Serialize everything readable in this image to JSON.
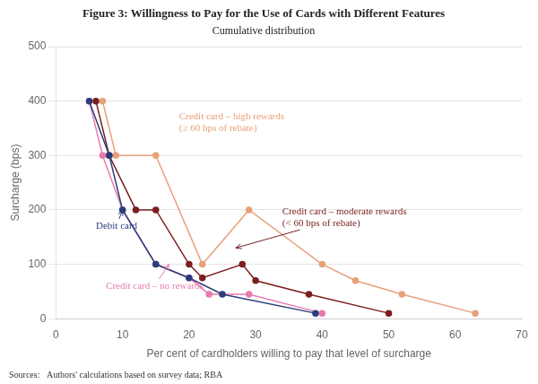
{
  "chart_data": {
    "type": "line",
    "title": "Figure 3: Willingness to Pay for the Use of Cards with Different Features",
    "subtitle": "Cumulative distribution",
    "xlabel": "Per cent of cardholders willing to pay that level of surcharge",
    "ylabel": "Surcharge (bps)",
    "xlim": [
      0,
      70
    ],
    "ylim": [
      0,
      500
    ],
    "xticks": [
      0,
      10,
      20,
      30,
      40,
      50,
      60,
      70
    ],
    "yticks": [
      0,
      100,
      200,
      300,
      400,
      500
    ],
    "grid": "y",
    "marker": "circle",
    "source": "Sources:   Authors' calculations based on survey data; RBA",
    "series": [
      {
        "color": "#2b3d7a",
        "x": [
          5,
          8,
          10,
          15,
          20,
          25,
          39
        ],
        "values": [
          400,
          300,
          200,
          100,
          75,
          45,
          10
        ]
      },
      {
        "color": "#e87aaf",
        "x": [
          5,
          7,
          10,
          15,
          20,
          23,
          29,
          40
        ],
        "values": [
          400,
          300,
          200,
          100,
          75,
          45,
          45,
          10
        ]
      },
      {
        "color": "#7b1e1e",
        "x": [
          6,
          8,
          12,
          15,
          20,
          22,
          28,
          30,
          38,
          50
        ],
        "values": [
          400,
          300,
          200,
          200,
          100,
          75,
          100,
          70,
          45,
          10
        ]
      },
      {
        "color": "#e8a07a",
        "x": [
          7,
          9,
          15,
          22,
          29,
          40,
          45,
          52,
          63
        ],
        "values": [
          400,
          300,
          300,
          100,
          200,
          100,
          70,
          45,
          10
        ]
      }
    ],
    "annotations": [
      {
        "text": "Debit card",
        "color": "#2b3d7a",
        "x": 6,
        "y": 165,
        "target": [
          10,
          200
        ]
      },
      {
        "text": "Credit card – no rewards",
        "color": "#e87aaf",
        "x": 7.5,
        "y": 55,
        "target": [
          17,
          100
        ]
      },
      {
        "text": "Credit card – moderate rewards\n(< 60 bps of rebate)",
        "color": "#7b1e1e",
        "x": 34,
        "y": 170,
        "target": [
          27,
          130
        ]
      },
      {
        "text": "Credit card – high rewards\n(≥ 60 bps of rebate)",
        "color": "#e8a07a",
        "x": 18.5,
        "y": 345
      }
    ]
  }
}
